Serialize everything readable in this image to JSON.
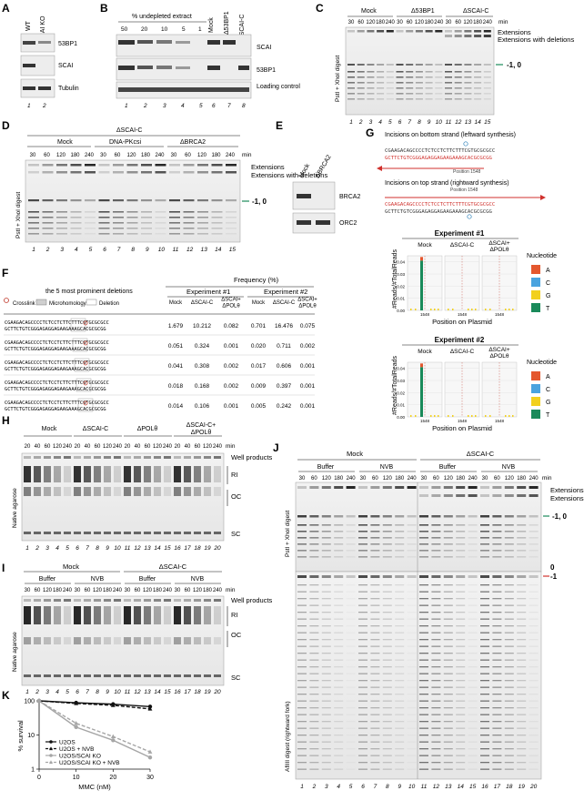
{
  "panels": {
    "A": {
      "letter": "A",
      "columns": [
        "WT",
        "SCAI KO"
      ],
      "blots": [
        "53BP1",
        "SCAI",
        "Tubulin"
      ],
      "lanes": [
        "1",
        "2"
      ]
    },
    "B": {
      "letter": "B",
      "extract_header": "% undepleted extract",
      "extract_cols": [
        "50",
        "20",
        "10",
        "5",
        "1"
      ],
      "other_cols": [
        "Mock",
        "Δ53BP1",
        "ΔSCAI-C"
      ],
      "blots": [
        "SCAI",
        "53BP1",
        "Loading control"
      ],
      "lanes": [
        "1",
        "2",
        "3",
        "4",
        "5",
        "6",
        "7",
        "8"
      ]
    },
    "C": {
      "letter": "C",
      "groups": [
        "Mock",
        "Δ53BP1",
        "ΔSCAI-C"
      ],
      "times": [
        "30",
        "60",
        "120",
        "180",
        "240"
      ],
      "unit": "min",
      "ylabel": "PstI + XhoI digest",
      "labels": [
        "Extensions",
        "Extensions with deletions",
        "-1, 0"
      ],
      "lanes": [
        "1",
        "2",
        "3",
        "4",
        "5",
        "6",
        "7",
        "8",
        "9",
        "10",
        "11",
        "12",
        "13",
        "14",
        "15"
      ]
    },
    "D": {
      "letter": "D",
      "top_group": "ΔSCAI-C",
      "groups": [
        "Mock",
        "DNA-PKcsi",
        "ΔBRCA2"
      ],
      "times": [
        "30",
        "60",
        "120",
        "180",
        "240"
      ],
      "unit": "min",
      "ylabel": "PstI + XhoI digest",
      "labels": [
        "Extensions",
        "Extensions with deletions",
        "-1, 0"
      ],
      "lanes": [
        "1",
        "2",
        "3",
        "4",
        "5",
        "6",
        "7",
        "8",
        "9",
        "10",
        "11",
        "12",
        "13",
        "14",
        "15"
      ]
    },
    "E": {
      "letter": "E",
      "columns": [
        "Mock",
        "ΔBRCA2"
      ],
      "blots": [
        "BRCA2",
        "ORC2"
      ]
    },
    "F": {
      "letter": "F",
      "title": "the 5 most prominent deletions",
      "legend": [
        "Crosslink",
        "Microhomology",
        "Deletion"
      ],
      "frequency_header": "Frequency (%)",
      "experiments": [
        "Experiment #1",
        "Experiment #2"
      ],
      "col_headers": [
        "Mock",
        "ΔSCAI-C",
        "ΔSCAI+ ΔPOLθ",
        "Mock",
        "ΔSCAI-C",
        "ΔSCAI+ ΔPOLθ"
      ],
      "seq_top": "CGAAGACAGCCCCTCTCCTCTTCTTTCGTGCGCGCC",
      "seq_bottom": "GCTTCTGTCGGGAGAGGAGAAGAAAGCACGCGCGG",
      "rows": [
        [
          "1.679",
          "10.212",
          "0.082",
          "0.701",
          "16.476",
          "0.075"
        ],
        [
          "0.051",
          "0.324",
          "0.001",
          "0.020",
          "0.711",
          "0.002"
        ],
        [
          "0.041",
          "0.308",
          "0.002",
          "0.017",
          "0.606",
          "0.001"
        ],
        [
          "0.018",
          "0.168",
          "0.002",
          "0.009",
          "0.397",
          "0.001"
        ],
        [
          "0.014",
          "0.106",
          "0.001",
          "0.005",
          "0.242",
          "0.001"
        ]
      ]
    },
    "G": {
      "letter": "G",
      "incision_bottom": "Incisions on bottom strand (leftward synthesis)",
      "incision_top": "Incisions on top strand (rightward synthesis)",
      "seq1_top": "CGAAGACAGCCCCTCTCCTCTTCTTTCGTGCGCGCC",
      "seq1_bottom": "GCTTCTGTCGGGAGAGGAGAAGAAAGCACGCGCGG",
      "seq2_top": "CGAAGACAGCCCCTCTCCTCTTCTTTCGTGCGCGCC",
      "seq2_bottom": "GCTTCTGTCGGGAGAGGAGAAGAAAGCACGCGCGG",
      "position": "Position 1548",
      "experiments": [
        "Experiment #1",
        "Experiment #2"
      ],
      "conditions": [
        "Mock",
        "ΔSCAI-C",
        "ΔSCAI+ ΔPOLθ"
      ],
      "ylabel": "#Reads/#TotalReads",
      "xlabel": "Position on Plasmid",
      "xtick": "1548",
      "yticks": [
        "0.00",
        "0.01",
        "0.02",
        "0.03",
        "0.04"
      ],
      "legend_title": "Nucleotide",
      "nucleotides": [
        {
          "name": "A",
          "color": "#e4572e"
        },
        {
          "name": "C",
          "color": "#4aa3df"
        },
        {
          "name": "G",
          "color": "#f2d01e"
        },
        {
          "name": "T",
          "color": "#1a8a5a"
        }
      ]
    },
    "H": {
      "letter": "H",
      "groups": [
        "Mock",
        "ΔSCAI-C",
        "ΔPOLθ",
        "ΔSCAI-C+ ΔPOLθ"
      ],
      "times": [
        "20",
        "40",
        "60",
        "120",
        "240"
      ],
      "unit": "min",
      "ylabel": "Native agarose",
      "labels": [
        "Well products",
        "RI",
        "OC",
        "SC"
      ],
      "lanes": [
        "1",
        "2",
        "3",
        "4",
        "5",
        "6",
        "7",
        "8",
        "9",
        "10",
        "11",
        "12",
        "13",
        "14",
        "15",
        "16",
        "17",
        "18",
        "19",
        "20"
      ]
    },
    "I": {
      "letter": "I",
      "groups": [
        "Mock",
        "ΔSCAI-C"
      ],
      "subgroups": [
        "Buffer",
        "NVB",
        "Buffer",
        "NVB"
      ],
      "times": [
        "30",
        "60",
        "120",
        "180",
        "240"
      ],
      "unit": "min",
      "ylabel": "Native agarose",
      "labels": [
        "Well products",
        "RI",
        "OC",
        "SC"
      ],
      "lanes": [
        "1",
        "2",
        "3",
        "4",
        "5",
        "6",
        "7",
        "8",
        "9",
        "10",
        "11",
        "12",
        "13",
        "14",
        "15",
        "16",
        "17",
        "18",
        "19",
        "20"
      ]
    },
    "J": {
      "letter": "J",
      "groups": [
        "Mock",
        "ΔSCAI-C"
      ],
      "subgroups": [
        "Buffer",
        "NVB",
        "Buffer",
        "NVB"
      ],
      "times": [
        "30",
        "60",
        "120",
        "180",
        "240"
      ],
      "unit": "min",
      "ylabel_top": "PstI + XhoI digest",
      "ylabel_bottom": "AflIII digest (rightward fork)",
      "labels": [
        "Extensions",
        "Extensions with deletions",
        "-1, 0",
        "0",
        "-1"
      ],
      "lanes": [
        "1",
        "2",
        "3",
        "4",
        "5",
        "6",
        "7",
        "8",
        "9",
        "10",
        "11",
        "12",
        "13",
        "14",
        "15",
        "16",
        "17",
        "18",
        "19",
        "20"
      ]
    }
  },
  "chart_data": {
    "type": "line",
    "panel": "K",
    "title": "",
    "xlabel": "MMC (nM)",
    "ylabel": "% survival",
    "yscale": "log",
    "xlim": [
      0,
      30
    ],
    "ylim": [
      1,
      100
    ],
    "xticks": [
      "0",
      "10",
      "20",
      "30"
    ],
    "yticks": [
      "1",
      "10",
      "100"
    ],
    "x": [
      0,
      10,
      20,
      30
    ],
    "series": [
      {
        "name": "U2OS",
        "values": [
          100,
          88,
          80,
          68
        ],
        "color": "#111111",
        "style": "solid",
        "marker": "circle"
      },
      {
        "name": "U2OS + NVB",
        "values": [
          100,
          84,
          74,
          58
        ],
        "color": "#111111",
        "style": "dashed",
        "marker": "triangle"
      },
      {
        "name": "U2OS/SCAI KO",
        "values": [
          100,
          17,
          7,
          2.2
        ],
        "color": "#a6a6a6",
        "style": "solid",
        "marker": "circle"
      },
      {
        "name": "U2OS/SCAI KO + NVB",
        "values": [
          100,
          22,
          9,
          3.2
        ],
        "color": "#a6a6a6",
        "style": "dashed",
        "marker": "triangle"
      }
    ]
  }
}
